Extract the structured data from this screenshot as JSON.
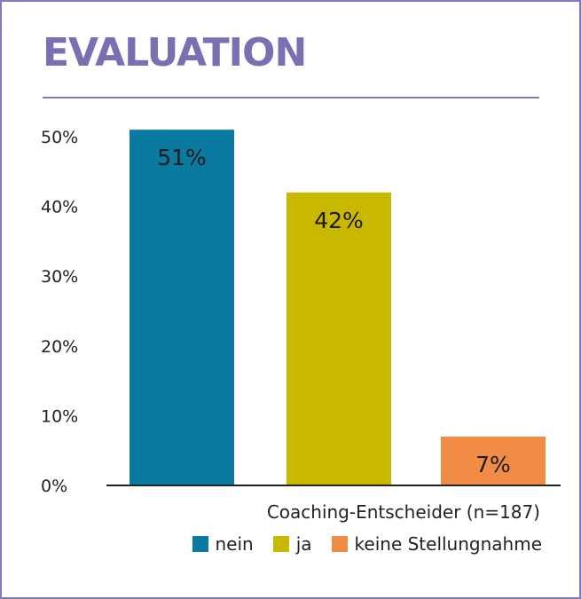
{
  "title": "EVALUATION",
  "colors": {
    "accent": "#7b6fb2",
    "nein": "#0a7aa0",
    "ja": "#c8b800",
    "keine": "#f08c45"
  },
  "chart_data": {
    "type": "bar",
    "title": "EVALUATION",
    "categories": [
      "nein",
      "ja",
      "keine Stellungnahme"
    ],
    "values": [
      51,
      42,
      7
    ],
    "value_labels": [
      "51%",
      "42%",
      "7%"
    ],
    "yticks": [
      "0%",
      "10%",
      "20%",
      "30%",
      "40%",
      "50%"
    ],
    "ylim": [
      0,
      55
    ],
    "xlabel": "Coaching-Entscheider (n=187)",
    "ylabel": "",
    "grid": false,
    "legend_placement": "bottom-right",
    "legend": [
      "nein",
      "ja",
      "keine Stellungnahme"
    ],
    "colors": [
      "#0a7aa0",
      "#c8b800",
      "#f08c45"
    ]
  }
}
